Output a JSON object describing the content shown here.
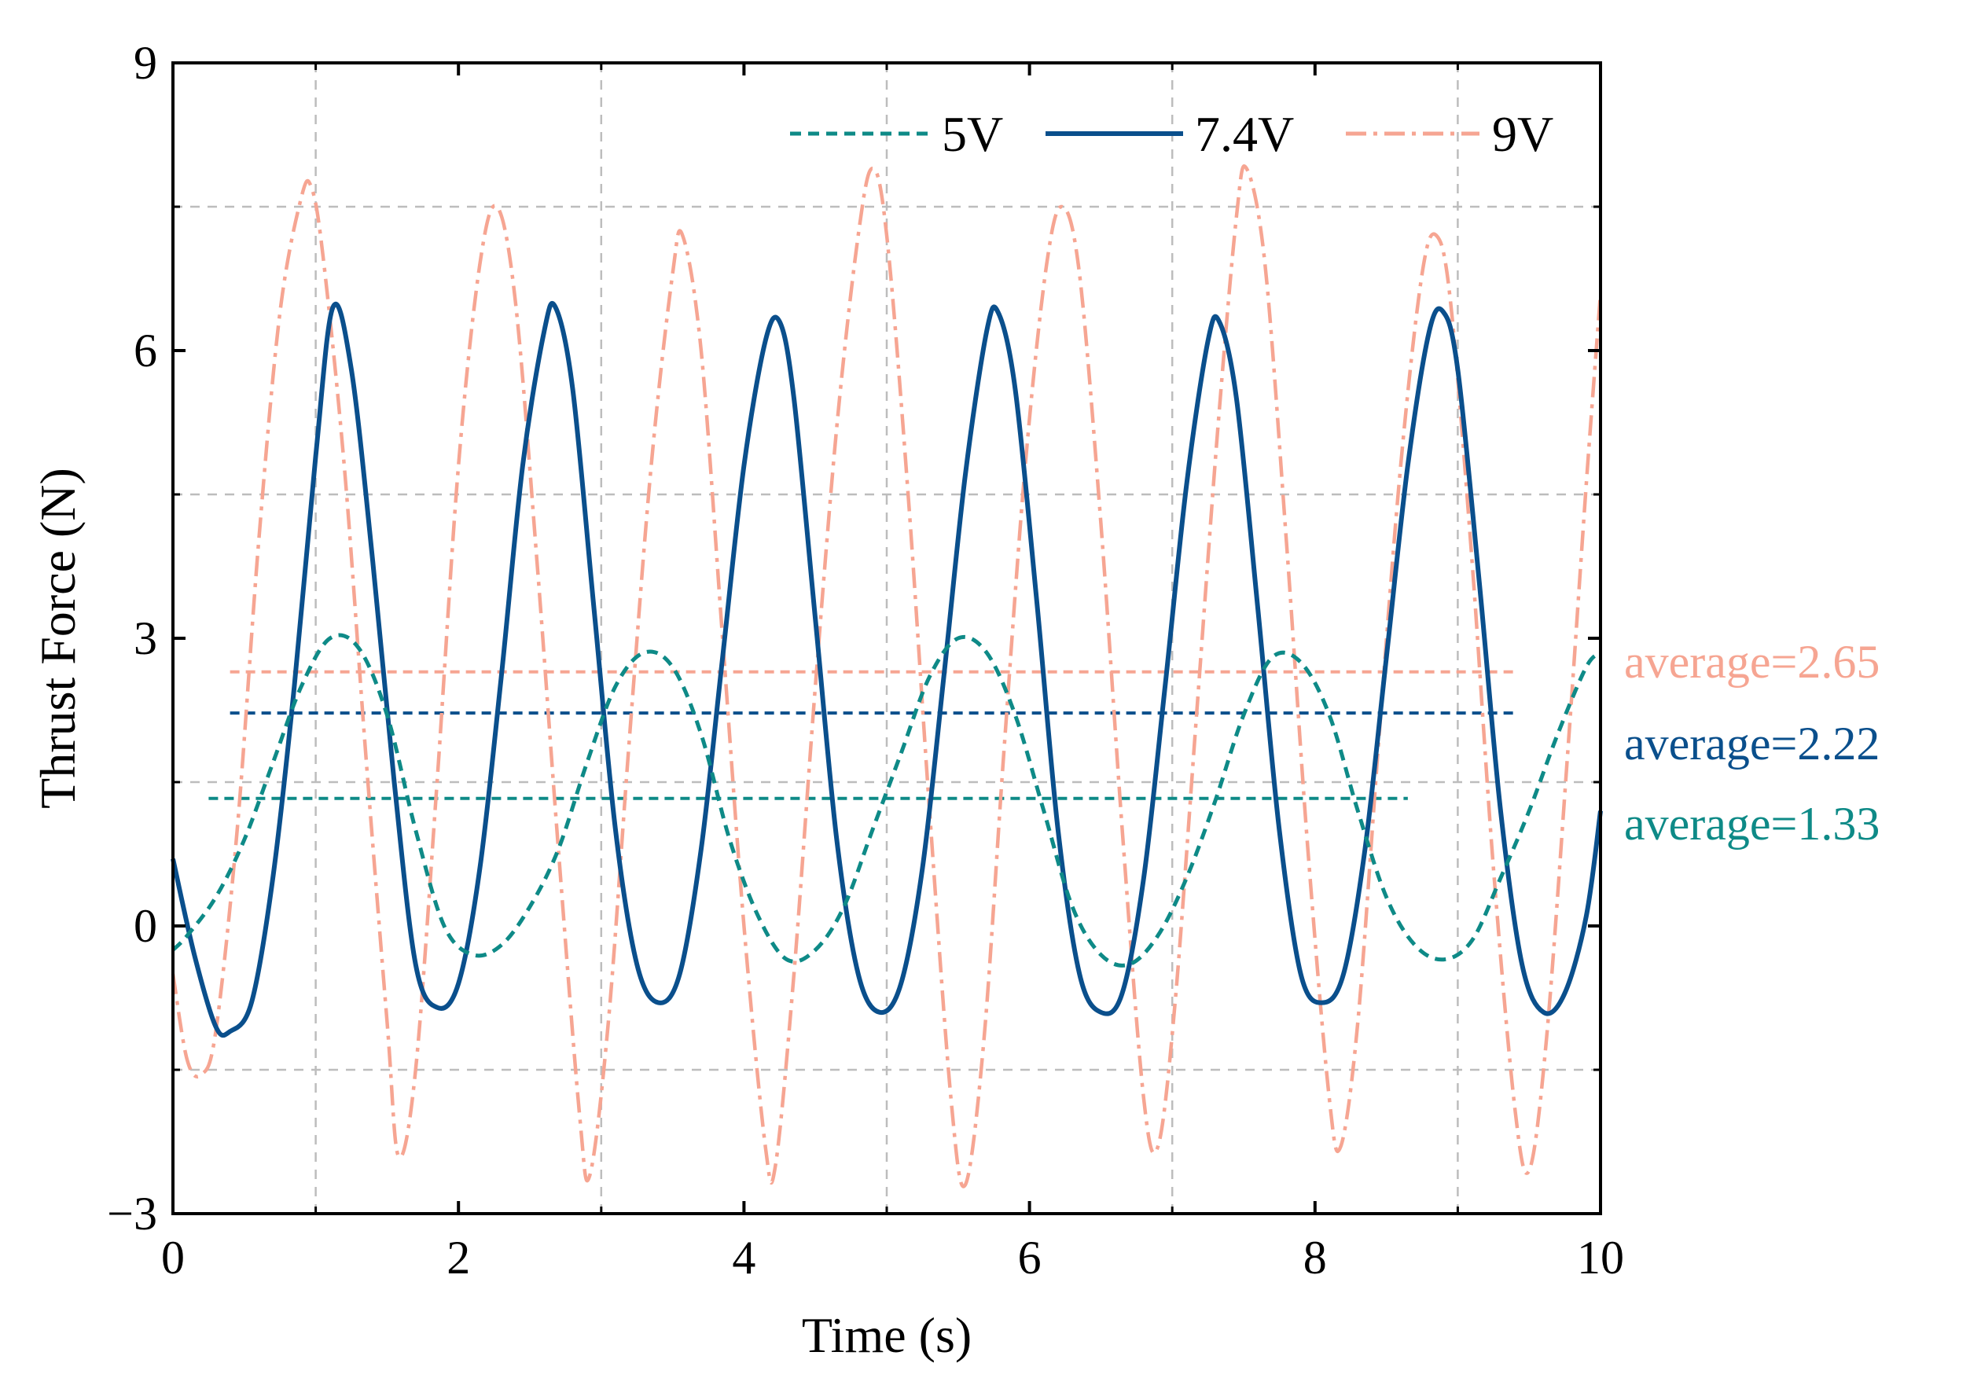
{
  "chart_data": {
    "type": "line",
    "title": "",
    "xlabel": "Time (s)",
    "ylabel": "Thrust Force (N)",
    "xlim": [
      0,
      10
    ],
    "ylim": [
      -3,
      9
    ],
    "x_ticks": [
      0,
      2,
      4,
      6,
      8,
      10
    ],
    "x_tick_labels": [
      "0",
      "2",
      "4",
      "6",
      "8",
      "10"
    ],
    "y_ticks": [
      -3,
      0,
      3,
      6,
      9
    ],
    "y_tick_labels": [
      "−3",
      "0",
      "3",
      "6",
      "9"
    ],
    "grid_x": [
      1,
      3,
      5,
      7,
      9
    ],
    "grid_y": [
      -1.5,
      1.5,
      4.5,
      7.5
    ],
    "grid": true,
    "legend_position": "top-right",
    "series": [
      {
        "name": "5V",
        "style": "dashed",
        "color": "#0E8A87",
        "points": [
          [
            0,
            -0.25
          ],
          [
            0.1,
            -0.1
          ],
          [
            0.3,
            0.3
          ],
          [
            0.5,
            0.9
          ],
          [
            0.7,
            1.7
          ],
          [
            0.9,
            2.5
          ],
          [
            1.1,
            3.0
          ],
          [
            1.3,
            2.9
          ],
          [
            1.5,
            2.2
          ],
          [
            1.7,
            1.0
          ],
          [
            1.9,
            0.0
          ],
          [
            2.1,
            -0.3
          ],
          [
            2.3,
            -0.2
          ],
          [
            2.5,
            0.2
          ],
          [
            2.7,
            0.8
          ],
          [
            2.9,
            1.7
          ],
          [
            3.1,
            2.5
          ],
          [
            3.3,
            2.85
          ],
          [
            3.5,
            2.7
          ],
          [
            3.7,
            2.0
          ],
          [
            3.9,
            0.9
          ],
          [
            4.1,
            0.1
          ],
          [
            4.3,
            -0.35
          ],
          [
            4.5,
            -0.25
          ],
          [
            4.7,
            0.2
          ],
          [
            4.9,
            1.0
          ],
          [
            5.1,
            1.8
          ],
          [
            5.3,
            2.6
          ],
          [
            5.5,
            3.0
          ],
          [
            5.7,
            2.85
          ],
          [
            5.9,
            2.2
          ],
          [
            6.1,
            1.2
          ],
          [
            6.3,
            0.2
          ],
          [
            6.5,
            -0.3
          ],
          [
            6.7,
            -0.4
          ],
          [
            6.9,
            -0.1
          ],
          [
            7.1,
            0.5
          ],
          [
            7.3,
            1.3
          ],
          [
            7.5,
            2.2
          ],
          [
            7.7,
            2.8
          ],
          [
            7.9,
            2.75
          ],
          [
            8.1,
            2.2
          ],
          [
            8.3,
            1.2
          ],
          [
            8.5,
            0.3
          ],
          [
            8.7,
            -0.2
          ],
          [
            8.9,
            -0.35
          ],
          [
            9.1,
            -0.15
          ],
          [
            9.3,
            0.5
          ],
          [
            9.5,
            1.2
          ],
          [
            9.7,
            2.0
          ],
          [
            9.9,
            2.7
          ],
          [
            10,
            2.85
          ]
        ]
      },
      {
        "name": "7.4V",
        "style": "solid",
        "color": "#0A4F8C",
        "points": [
          [
            0,
            0.7
          ],
          [
            0.15,
            -0.3
          ],
          [
            0.3,
            -1.05
          ],
          [
            0.4,
            -1.1
          ],
          [
            0.55,
            -0.8
          ],
          [
            0.7,
            0.5
          ],
          [
            0.85,
            2.5
          ],
          [
            1.0,
            4.9
          ],
          [
            1.12,
            6.45
          ],
          [
            1.25,
            5.8
          ],
          [
            1.4,
            3.8
          ],
          [
            1.55,
            1.5
          ],
          [
            1.7,
            -0.4
          ],
          [
            1.85,
            -0.85
          ],
          [
            2.0,
            -0.6
          ],
          [
            2.15,
            0.6
          ],
          [
            2.3,
            2.6
          ],
          [
            2.45,
            4.8
          ],
          [
            2.6,
            6.2
          ],
          [
            2.68,
            6.45
          ],
          [
            2.8,
            5.6
          ],
          [
            2.95,
            3.3
          ],
          [
            3.1,
            1.0
          ],
          [
            3.25,
            -0.4
          ],
          [
            3.4,
            -0.8
          ],
          [
            3.55,
            -0.5
          ],
          [
            3.7,
            0.8
          ],
          [
            3.85,
            2.8
          ],
          [
            4.0,
            4.8
          ],
          [
            4.15,
            6.1
          ],
          [
            4.25,
            6.3
          ],
          [
            4.35,
            5.5
          ],
          [
            4.5,
            3.2
          ],
          [
            4.65,
            0.9
          ],
          [
            4.8,
            -0.5
          ],
          [
            4.95,
            -0.9
          ],
          [
            5.1,
            -0.6
          ],
          [
            5.25,
            0.6
          ],
          [
            5.4,
            2.6
          ],
          [
            5.55,
            4.7
          ],
          [
            5.7,
            6.2
          ],
          [
            5.78,
            6.4
          ],
          [
            5.9,
            5.6
          ],
          [
            6.05,
            3.4
          ],
          [
            6.2,
            1.0
          ],
          [
            6.35,
            -0.5
          ],
          [
            6.5,
            -0.9
          ],
          [
            6.65,
            -0.7
          ],
          [
            6.8,
            0.5
          ],
          [
            6.95,
            2.5
          ],
          [
            7.1,
            4.6
          ],
          [
            7.25,
            6.1
          ],
          [
            7.33,
            6.3
          ],
          [
            7.45,
            5.5
          ],
          [
            7.6,
            3.3
          ],
          [
            7.75,
            1.0
          ],
          [
            7.9,
            -0.5
          ],
          [
            8.05,
            -0.8
          ],
          [
            8.2,
            -0.5
          ],
          [
            8.35,
            0.8
          ],
          [
            8.5,
            2.8
          ],
          [
            8.65,
            4.8
          ],
          [
            8.8,
            6.2
          ],
          [
            8.9,
            6.4
          ],
          [
            9.0,
            5.8
          ],
          [
            9.15,
            3.6
          ],
          [
            9.3,
            1.2
          ],
          [
            9.45,
            -0.4
          ],
          [
            9.6,
            -0.9
          ],
          [
            9.75,
            -0.7
          ],
          [
            9.9,
            0.1
          ],
          [
            10,
            1.2
          ]
        ]
      },
      {
        "name": "9V",
        "style": "dash-dot",
        "color": "#F6A592",
        "points": [
          [
            0,
            -0.5
          ],
          [
            0.1,
            -1.4
          ],
          [
            0.2,
            -1.55
          ],
          [
            0.3,
            -1.1
          ],
          [
            0.45,
            1.0
          ],
          [
            0.6,
            4.0
          ],
          [
            0.75,
            6.4
          ],
          [
            0.9,
            7.6
          ],
          [
            0.97,
            7.7
          ],
          [
            1.05,
            7.0
          ],
          [
            1.2,
            4.8
          ],
          [
            1.35,
            1.8
          ],
          [
            1.5,
            -1.0
          ],
          [
            1.58,
            -2.4
          ],
          [
            1.7,
            -1.5
          ],
          [
            1.85,
            1.5
          ],
          [
            2.0,
            4.8
          ],
          [
            2.15,
            6.9
          ],
          [
            2.27,
            7.5
          ],
          [
            2.4,
            6.5
          ],
          [
            2.55,
            3.8
          ],
          [
            2.7,
            0.8
          ],
          [
            2.85,
            -2.0
          ],
          [
            2.92,
            -2.6
          ],
          [
            3.05,
            -1.0
          ],
          [
            3.2,
            2.0
          ],
          [
            3.35,
            4.8
          ],
          [
            3.5,
            6.8
          ],
          [
            3.57,
            7.2
          ],
          [
            3.7,
            6.0
          ],
          [
            3.85,
            3.0
          ],
          [
            4.0,
            0.0
          ],
          [
            4.15,
            -2.3
          ],
          [
            4.22,
            -2.5
          ],
          [
            4.35,
            -0.5
          ],
          [
            4.5,
            2.5
          ],
          [
            4.65,
            5.2
          ],
          [
            4.8,
            7.2
          ],
          [
            4.9,
            7.9
          ],
          [
            5.0,
            7.2
          ],
          [
            5.15,
            4.5
          ],
          [
            5.3,
            1.2
          ],
          [
            5.45,
            -1.8
          ],
          [
            5.55,
            -2.7
          ],
          [
            5.68,
            -1.2
          ],
          [
            5.82,
            1.8
          ],
          [
            5.97,
            4.8
          ],
          [
            6.12,
            6.9
          ],
          [
            6.23,
            7.5
          ],
          [
            6.35,
            6.8
          ],
          [
            6.5,
            4.2
          ],
          [
            6.65,
            1.0
          ],
          [
            6.8,
            -1.8
          ],
          [
            6.9,
            -2.3
          ],
          [
            7.02,
            -0.8
          ],
          [
            7.17,
            2.2
          ],
          [
            7.32,
            5.2
          ],
          [
            7.45,
            7.4
          ],
          [
            7.52,
            7.9
          ],
          [
            7.65,
            6.9
          ],
          [
            7.8,
            4.0
          ],
          [
            7.95,
            0.8
          ],
          [
            8.1,
            -1.8
          ],
          [
            8.18,
            -2.3
          ],
          [
            8.3,
            -1.0
          ],
          [
            8.45,
            2.0
          ],
          [
            8.6,
            4.8
          ],
          [
            8.75,
            6.8
          ],
          [
            8.85,
            7.2
          ],
          [
            8.95,
            6.5
          ],
          [
            9.1,
            3.8
          ],
          [
            9.25,
            0.6
          ],
          [
            9.4,
            -1.9
          ],
          [
            9.5,
            -2.55
          ],
          [
            9.62,
            -1.2
          ],
          [
            9.77,
            1.8
          ],
          [
            9.9,
            4.6
          ],
          [
            10,
            6.6
          ]
        ]
      }
    ],
    "averages": [
      {
        "label": "average=2.65",
        "value": 2.65,
        "x_start": 0.4,
        "x_end": 9.4,
        "color": "#F6A592"
      },
      {
        "label": "average=2.22",
        "value": 2.22,
        "x_start": 0.4,
        "x_end": 9.4,
        "color": "#0A4F8C"
      },
      {
        "label": "average=1.33",
        "value": 1.33,
        "x_start": 0.25,
        "x_end": 8.65,
        "color": "#0E8A87"
      }
    ],
    "legend_entries": [
      "5V",
      "7.4V",
      "9V"
    ]
  }
}
